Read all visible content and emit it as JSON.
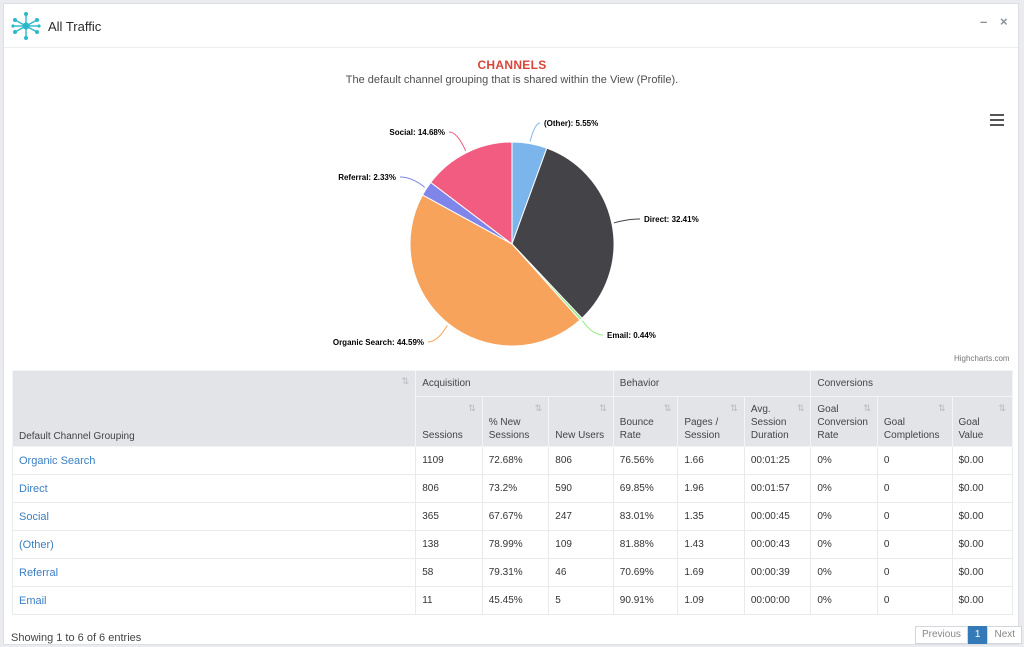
{
  "window": {
    "title": "All Traffic",
    "minimize_label": "–",
    "close_label": "×"
  },
  "chart_data": {
    "type": "pie",
    "title": "CHANNELS",
    "subtitle": "The default channel grouping that is shared within the View (Profile).",
    "credit": "Highcharts.com",
    "slices": [
      {
        "name": "(Other)",
        "value": 5.55,
        "label": "(Other): 5.55%",
        "color": "#7cb5ec"
      },
      {
        "name": "Direct",
        "value": 32.41,
        "label": "Direct: 32.41%",
        "color": "#434348"
      },
      {
        "name": "Email",
        "value": 0.44,
        "label": "Email: 0.44%",
        "color": "#90ed7d"
      },
      {
        "name": "Organic Search",
        "value": 44.59,
        "label": "Organic Search: 44.59%",
        "color": "#f7a35c"
      },
      {
        "name": "Referral",
        "value": 2.33,
        "label": "Referral: 2.33%",
        "color": "#8085e9"
      },
      {
        "name": "Social",
        "value": 14.68,
        "label": "Social: 14.68%",
        "color": "#f15c80"
      }
    ]
  },
  "table": {
    "first_col_header": "Default Channel Grouping",
    "groups": [
      "Acquisition",
      "Behavior",
      "Conversions"
    ],
    "columns": [
      "Sessions",
      "% New Sessions",
      "New Users",
      "Bounce Rate",
      "Pages / Session",
      "Avg. Session Duration",
      "Goal Conversion Rate",
      "Goal Completions",
      "Goal Value"
    ],
    "rows": [
      {
        "channel": "Organic Search",
        "cells": [
          "1109",
          "72.68%",
          "806",
          "76.56%",
          "1.66",
          "00:01:25",
          "0%",
          "0",
          "$0.00"
        ]
      },
      {
        "channel": "Direct",
        "cells": [
          "806",
          "73.2%",
          "590",
          "69.85%",
          "1.96",
          "00:01:57",
          "0%",
          "0",
          "$0.00"
        ]
      },
      {
        "channel": "Social",
        "cells": [
          "365",
          "67.67%",
          "247",
          "83.01%",
          "1.35",
          "00:00:45",
          "0%",
          "0",
          "$0.00"
        ]
      },
      {
        "channel": "(Other)",
        "cells": [
          "138",
          "78.99%",
          "109",
          "81.88%",
          "1.43",
          "00:00:43",
          "0%",
          "0",
          "$0.00"
        ]
      },
      {
        "channel": "Referral",
        "cells": [
          "58",
          "79.31%",
          "46",
          "70.69%",
          "1.69",
          "00:00:39",
          "0%",
          "0",
          "$0.00"
        ]
      },
      {
        "channel": "Email",
        "cells": [
          "11",
          "45.45%",
          "5",
          "90.91%",
          "1.09",
          "00:00:00",
          "0%",
          "0",
          "$0.00"
        ]
      }
    ]
  },
  "footer": {
    "info": "Showing 1 to 6 of 6 entries",
    "previous": "Previous",
    "page": "1",
    "next": "Next"
  }
}
